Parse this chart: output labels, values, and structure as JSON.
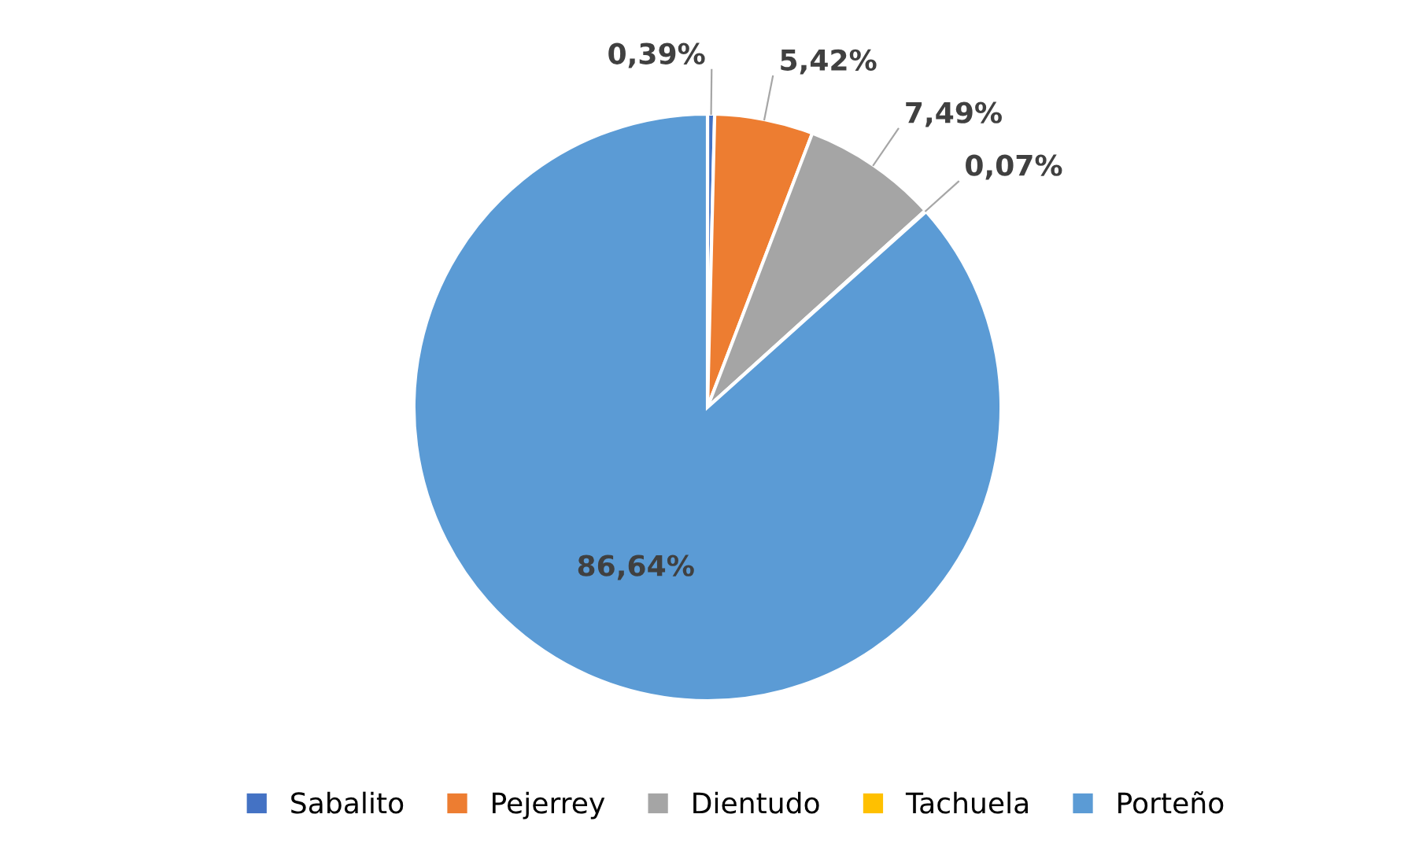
{
  "chart_data": {
    "type": "pie",
    "categories": [
      "Sabalito",
      "Pejerrey",
      "Dientudo",
      "Tachuela",
      "Porteño"
    ],
    "values": [
      0.39,
      5.42,
      7.49,
      0.07,
      86.64
    ],
    "colors": [
      "#4472c4",
      "#ed7d31",
      "#a5a5a5",
      "#ffc000",
      "#5b9bd5"
    ],
    "value_labels": [
      "0,39%",
      "5,42%",
      "7,49%",
      "0,07%",
      "86,64%"
    ],
    "legend": "bottom"
  }
}
